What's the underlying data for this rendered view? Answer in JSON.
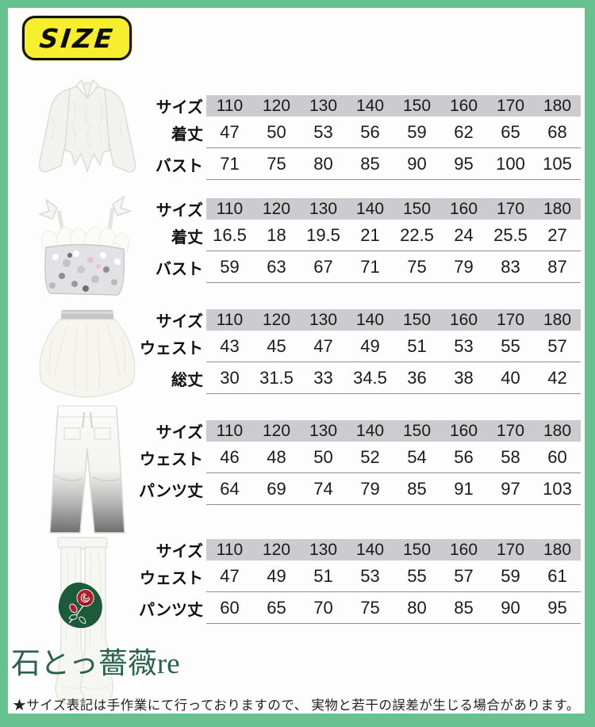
{
  "badge": {
    "label": "SIZE"
  },
  "tables": [
    {
      "rows": [
        {
          "header": true,
          "label": "サイズ",
          "values": [
            "110",
            "120",
            "130",
            "140",
            "150",
            "160",
            "170",
            "180"
          ]
        },
        {
          "header": false,
          "label": "着丈",
          "values": [
            "47",
            "50",
            "53",
            "56",
            "59",
            "62",
            "65",
            "68"
          ]
        },
        {
          "header": false,
          "label": "バスト",
          "values": [
            "71",
            "75",
            "80",
            "85",
            "90",
            "95",
            "100",
            "105"
          ]
        }
      ]
    },
    {
      "rows": [
        {
          "header": true,
          "label": "サイズ",
          "values": [
            "110",
            "120",
            "130",
            "140",
            "150",
            "160",
            "170",
            "180"
          ]
        },
        {
          "header": false,
          "label": "着丈",
          "values": [
            "16.5",
            "18",
            "19.5",
            "21",
            "22.5",
            "24",
            "25.5",
            "27"
          ]
        },
        {
          "header": false,
          "label": "バスト",
          "values": [
            "59",
            "63",
            "67",
            "71",
            "75",
            "79",
            "83",
            "87"
          ]
        }
      ]
    },
    {
      "rows": [
        {
          "header": true,
          "label": "サイズ",
          "values": [
            "110",
            "120",
            "130",
            "140",
            "150",
            "160",
            "170",
            "180"
          ]
        },
        {
          "header": false,
          "label": "ウェスト",
          "values": [
            "43",
            "45",
            "47",
            "49",
            "51",
            "53",
            "55",
            "57"
          ]
        },
        {
          "header": false,
          "label": "総丈",
          "values": [
            "30",
            "31.5",
            "33",
            "34.5",
            "36",
            "38",
            "40",
            "42"
          ]
        }
      ]
    },
    {
      "rows": [
        {
          "header": true,
          "label": "サイズ",
          "values": [
            "110",
            "120",
            "130",
            "140",
            "150",
            "160",
            "170",
            "180"
          ]
        },
        {
          "header": false,
          "label": "ウェスト",
          "values": [
            "46",
            "48",
            "50",
            "52",
            "54",
            "56",
            "58",
            "60"
          ]
        },
        {
          "header": false,
          "label": "パンツ丈",
          "values": [
            "64",
            "69",
            "74",
            "79",
            "85",
            "91",
            "97",
            "103"
          ]
        }
      ]
    },
    {
      "rows": [
        {
          "header": true,
          "label": "サイズ",
          "values": [
            "110",
            "120",
            "130",
            "140",
            "150",
            "160",
            "170",
            "180"
          ]
        },
        {
          "header": false,
          "label": "ウェスト",
          "values": [
            "47",
            "49",
            "51",
            "53",
            "55",
            "57",
            "59",
            "61"
          ]
        },
        {
          "header": false,
          "label": "パンツ丈",
          "values": [
            "60",
            "65",
            "70",
            "75",
            "80",
            "85",
            "90",
            "95"
          ]
        }
      ]
    }
  ],
  "logo": {
    "text": "石とっ薔薇re"
  },
  "footer": {
    "note": "★サイズ表記は手作業にて行っておりますので、 実物と若干の誤差が生じる場合があります。"
  },
  "colors": {
    "frame_green": "#66c28f",
    "header_band": "#cbcbd0",
    "badge_yellow": "#f7ee2e",
    "logo_green": "#1d5a3b",
    "rose_red": "#ad1f2d"
  }
}
